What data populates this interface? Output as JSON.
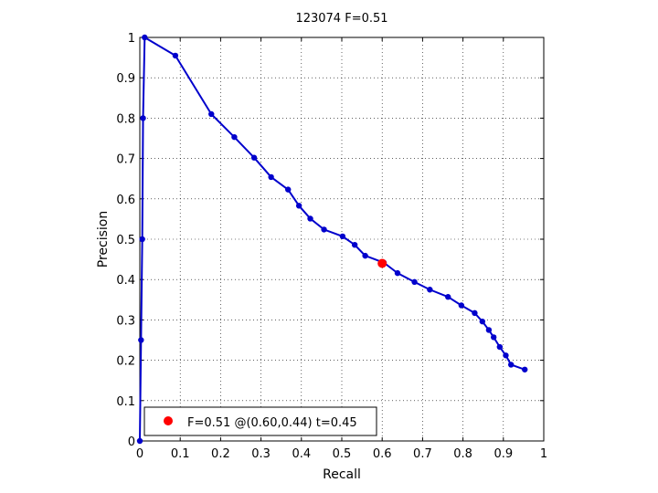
{
  "chart_data": {
    "type": "line",
    "title": "123074 F=0.51",
    "xlabel": "Recall",
    "ylabel": "Precision",
    "xlim": [
      0,
      1
    ],
    "ylim": [
      0,
      1
    ],
    "grid": true,
    "x_ticks": [
      "0",
      "0.1",
      "0.2",
      "0.3",
      "0.4",
      "0.5",
      "0.6",
      "0.7",
      "0.8",
      "0.9",
      "1"
    ],
    "y_ticks": [
      "0",
      "0.1",
      "0.2",
      "0.3",
      "0.4",
      "0.5",
      "0.6",
      "0.7",
      "0.8",
      "0.9",
      "1"
    ],
    "series": [
      {
        "color": "#0000cc",
        "marker": "dot",
        "points": [
          [
            0.0,
            0.0
          ],
          [
            0.003,
            0.25
          ],
          [
            0.006,
            0.5
          ],
          [
            0.008,
            0.8
          ],
          [
            0.012,
            1.0
          ],
          [
            0.088,
            0.955
          ],
          [
            0.177,
            0.81
          ],
          [
            0.234,
            0.753
          ],
          [
            0.283,
            0.702
          ],
          [
            0.325,
            0.654
          ],
          [
            0.367,
            0.623
          ],
          [
            0.394,
            0.583
          ],
          [
            0.422,
            0.551
          ],
          [
            0.456,
            0.524
          ],
          [
            0.502,
            0.507
          ],
          [
            0.532,
            0.486
          ],
          [
            0.558,
            0.459
          ],
          [
            0.604,
            0.442
          ],
          [
            0.638,
            0.416
          ],
          [
            0.68,
            0.394
          ],
          [
            0.718,
            0.375
          ],
          [
            0.763,
            0.357
          ],
          [
            0.796,
            0.336
          ],
          [
            0.829,
            0.317
          ],
          [
            0.848,
            0.296
          ],
          [
            0.864,
            0.275
          ],
          [
            0.876,
            0.257
          ],
          [
            0.891,
            0.233
          ],
          [
            0.906,
            0.212
          ],
          [
            0.919,
            0.189
          ],
          [
            0.953,
            0.177
          ]
        ]
      }
    ],
    "highlight_point": {
      "x": 0.6,
      "y": 0.44,
      "color": "#ff0000"
    },
    "legend": {
      "position": "bottom-left",
      "label": "F=0.51 @(0.60,0.44) t=0.45"
    }
  }
}
